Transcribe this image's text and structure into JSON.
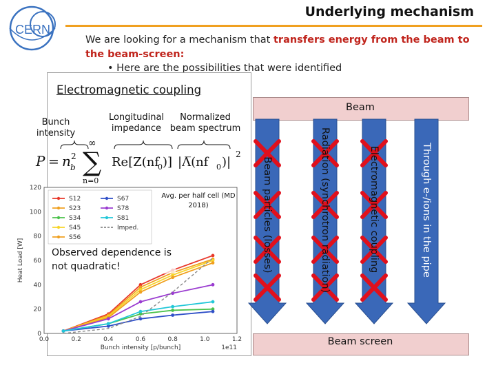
{
  "header": {
    "title": "Underlying mechanism",
    "logo_text": "CERN",
    "accent": "#f0a020"
  },
  "intro": {
    "text_before": "We are looking for a mechanism that ",
    "highlight": "transfers energy from the beam to the beam-screen:",
    "highlight_color": "#c0241c",
    "bullet": "•   Here are the possibilities that were identified"
  },
  "panel": {
    "title": "Electromagnetic coupling",
    "bunch_intensity": "Bunch intensity",
    "longitudinal_impedance": "Longitudinal impedance",
    "normalized_beam_spectrum": "Normalized beam spectrum",
    "observed_note": "Observed dependence is not quadratic!",
    "avg_note": "Avg. per half cell (MD 2018)"
  },
  "chart_data": {
    "type": "line",
    "xlabel": "Bunch intensity [p/bunch]",
    "ylabel": "Heat Load [W]",
    "x_multiplier": "1e11",
    "xlim": [
      0.0,
      1.2
    ],
    "ylim": [
      0,
      120
    ],
    "xticks": [
      "0.0",
      "0.2",
      "0.4",
      "0.6",
      "0.8",
      "1.0",
      "1.2"
    ],
    "yticks": [
      "0",
      "20",
      "40",
      "60",
      "80",
      "100",
      "120"
    ],
    "grid": true,
    "legend_placement": "top-left",
    "x": [
      0.12,
      0.4,
      0.6,
      0.8,
      1.05
    ],
    "series": [
      {
        "name": "S12",
        "color": "#e8372a",
        "values": [
          2,
          16,
          40,
          52,
          64
        ]
      },
      {
        "name": "S23",
        "color": "#f0a020",
        "values": [
          2,
          15,
          38,
          50,
          61
        ]
      },
      {
        "name": "S34",
        "color": "#4cc24c",
        "values": [
          2,
          8,
          16,
          19,
          20
        ]
      },
      {
        "name": "S45",
        "color": "#f7d52a",
        "values": [
          2,
          14,
          36,
          48,
          60
        ]
      },
      {
        "name": "S56",
        "color": "#f0a020",
        "values": [
          2,
          13,
          34,
          46,
          58
        ]
      },
      {
        "name": "S67",
        "color": "#3050c8",
        "values": [
          2,
          6,
          12,
          15,
          18
        ]
      },
      {
        "name": "S78",
        "color": "#9a3bd0",
        "values": [
          2,
          12,
          26,
          33,
          40
        ]
      },
      {
        "name": "S81",
        "color": "#22c7d8",
        "values": [
          2,
          8,
          18,
          22,
          26
        ]
      },
      {
        "name": "Imped.",
        "color": "#888888",
        "dashed": true,
        "values": [
          0,
          4,
          14,
          34,
          62
        ]
      }
    ]
  },
  "mechanisms": {
    "beam": "Beam",
    "beam_screen": "Beam screen",
    "arrows": [
      {
        "label": "Through e-/ions in the pipe",
        "color": "#3a68b8",
        "crossed": false
      },
      {
        "label": "Electromagnetic coupling",
        "color": "#3a68b8",
        "crossed": true
      },
      {
        "label": "Radiation (synchrotron radiation)",
        "color": "#3a68b8",
        "crossed": true
      },
      {
        "label": "Beam particles (losses)",
        "color": "#3a68b8",
        "crossed": true
      }
    ],
    "cross_color": "#e0101c"
  }
}
